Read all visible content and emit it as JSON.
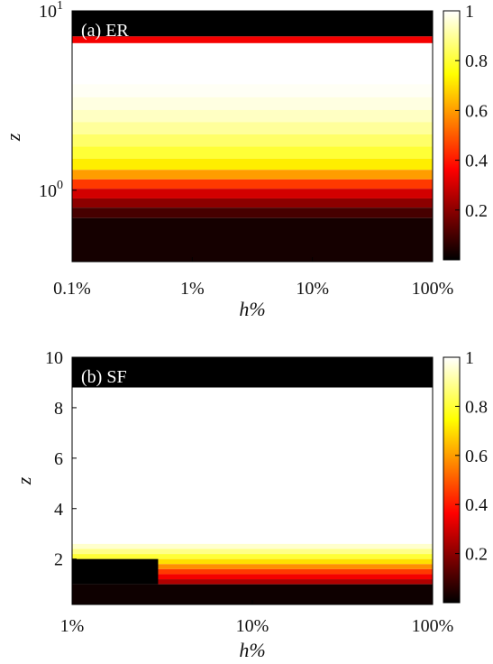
{
  "chart_data": [
    {
      "type": "heatmap",
      "panel_label": "(a) ER",
      "xlabel": "h%",
      "ylabel": "z",
      "x_scale": "log",
      "y_scale": "log",
      "xlim": [
        0.1,
        100
      ],
      "ylim": [
        0.4,
        10
      ],
      "x_ticks": [
        {
          "value": 0.1,
          "label": "0.1%"
        },
        {
          "value": 1,
          "label": "1%"
        },
        {
          "value": 10,
          "label": "10%"
        },
        {
          "value": 100,
          "label": "100%"
        }
      ],
      "y_ticks": [
        {
          "value": 1,
          "base": "10",
          "exp": "0"
        },
        {
          "value": 10,
          "base": "10",
          "exp": "1"
        }
      ],
      "colorbar": {
        "range": [
          0,
          1
        ],
        "colormap": "hot",
        "ticks": [
          {
            "value": 0.2,
            "label": "0.2"
          },
          {
            "value": 0.4,
            "label": "0.4"
          },
          {
            "value": 0.6,
            "label": "0.6"
          },
          {
            "value": 0.8,
            "label": "0.8"
          },
          {
            "value": 1,
            "label": "1"
          }
        ]
      },
      "bands": [
        {
          "z": [
            7.2,
            10
          ],
          "value": 0.0
        },
        {
          "z": [
            6.6,
            7.2
          ],
          "value": 0.35
        },
        {
          "z": [
            6.2,
            6.6
          ],
          "value": 1.0
        },
        {
          "z": [
            5.4,
            6.2
          ],
          "value": 1.0
        },
        {
          "z": [
            4.6,
            5.4
          ],
          "value": 1.0
        },
        {
          "z": [
            3.9,
            4.6
          ],
          "value": 1.0
        },
        {
          "z": [
            3.3,
            3.9
          ],
          "value": 0.99
        },
        {
          "z": [
            2.8,
            3.3
          ],
          "value": 0.97
        },
        {
          "z": [
            2.4,
            2.8
          ],
          "value": 0.94
        },
        {
          "z": [
            2.05,
            2.4
          ],
          "value": 0.9
        },
        {
          "z": [
            1.75,
            2.05
          ],
          "value": 0.85
        },
        {
          "z": [
            1.5,
            1.75
          ],
          "value": 0.8
        },
        {
          "z": [
            1.3,
            1.5
          ],
          "value": 0.72
        },
        {
          "z": [
            1.15,
            1.3
          ],
          "value": 0.6
        },
        {
          "z": [
            1.02,
            1.15
          ],
          "value": 0.45
        },
        {
          "z": [
            0.9,
            1.02
          ],
          "value": 0.3
        },
        {
          "z": [
            0.8,
            0.9
          ],
          "value": 0.2
        },
        {
          "z": [
            0.7,
            0.8
          ],
          "value": 0.1
        },
        {
          "z": [
            0.4,
            0.7
          ],
          "value": 0.03
        }
      ]
    },
    {
      "type": "heatmap",
      "panel_label": "(b) SF",
      "xlabel": "h%",
      "ylabel": "z",
      "x_scale": "log",
      "y_scale": "linear",
      "xlim": [
        1,
        100
      ],
      "ylim": [
        0.2,
        10
      ],
      "x_ticks": [
        {
          "value": 1,
          "label": "1%"
        },
        {
          "value": 10,
          "label": "10%"
        },
        {
          "value": 100,
          "label": "100%"
        }
      ],
      "y_ticks": [
        {
          "value": 2,
          "label": "2"
        },
        {
          "value": 4,
          "label": "4"
        },
        {
          "value": 6,
          "label": "6"
        },
        {
          "value": 8,
          "label": "8"
        },
        {
          "value": 10,
          "label": "10"
        }
      ],
      "colorbar": {
        "range": [
          0,
          1
        ],
        "colormap": "hot",
        "ticks": [
          {
            "value": 0.2,
            "label": "0.2"
          },
          {
            "value": 0.4,
            "label": "0.4"
          },
          {
            "value": 0.6,
            "label": "0.6"
          },
          {
            "value": 0.8,
            "label": "0.8"
          },
          {
            "value": 1,
            "label": "1"
          }
        ]
      },
      "bands": [
        {
          "z": [
            8.8,
            10
          ],
          "value": 0.0
        },
        {
          "z": [
            2.6,
            8.8
          ],
          "value": 1.0
        },
        {
          "z": [
            2.4,
            2.6
          ],
          "value": 0.95
        },
        {
          "z": [
            2.2,
            2.4
          ],
          "value": 0.88
        },
        {
          "z": [
            2.0,
            2.2
          ],
          "value": 0.8
        },
        {
          "z": [
            1.8,
            2.0
          ],
          "value": 0.7
        },
        {
          "z": [
            1.6,
            1.8
          ],
          "value": 0.58
        },
        {
          "z": [
            1.4,
            1.6
          ],
          "value": 0.45
        },
        {
          "z": [
            1.2,
            1.4
          ],
          "value": 0.35
        },
        {
          "z": [
            1.0,
            1.2
          ],
          "value": 0.25
        },
        {
          "z": [
            0.2,
            1.0
          ],
          "value": 0.02
        }
      ],
      "dark_patches": [
        {
          "x": [
            1,
            3
          ],
          "z": [
            1.0,
            2.0
          ],
          "value": 0.0
        }
      ]
    }
  ]
}
